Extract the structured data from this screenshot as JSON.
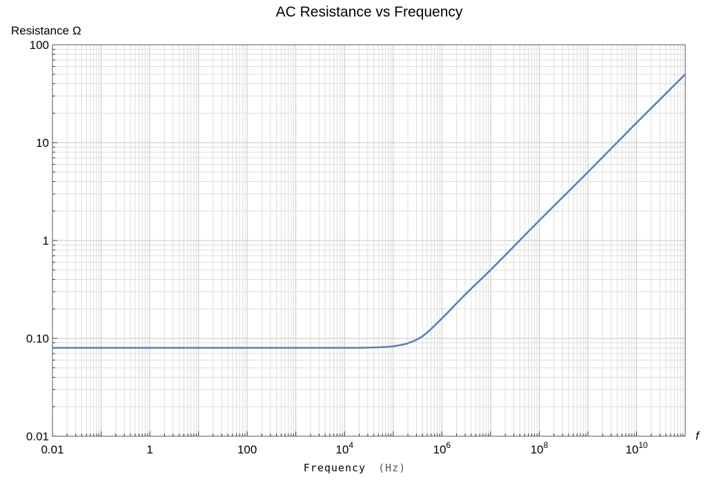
{
  "chart_data": {
    "type": "line",
    "title": "AC Resistance vs Frequency",
    "ylabel": "Resistance Ω",
    "xlabel_text": "Frequency",
    "xlabel_unit": "(Hz)",
    "x_axis_end_label": "f",
    "x_scale": "log",
    "y_scale": "log",
    "xlim": [
      0.01,
      100000000000
    ],
    "ylim": [
      0.01,
      100
    ],
    "grid": true,
    "x_ticks": [
      {
        "value": 0.01,
        "label": "0.01"
      },
      {
        "value": 1,
        "label": "1"
      },
      {
        "value": 100,
        "label": "100"
      },
      {
        "value": 10000,
        "base": "10",
        "exp": "4"
      },
      {
        "value": 1000000,
        "base": "10",
        "exp": "6"
      },
      {
        "value": 100000000,
        "base": "10",
        "exp": "8"
      },
      {
        "value": 10000000000,
        "base": "10",
        "exp": "10"
      }
    ],
    "y_ticks": [
      {
        "value": 0.01,
        "label": "0.01"
      },
      {
        "value": 0.1,
        "label": "0.10"
      },
      {
        "value": 1,
        "label": "1"
      },
      {
        "value": 10,
        "label": "10"
      },
      {
        "value": 100,
        "label": "100"
      }
    ],
    "series": [
      {
        "color": "#5b7db5",
        "points": [
          {
            "x": 0.01,
            "y": 0.08
          },
          {
            "x": 1,
            "y": 0.08
          },
          {
            "x": 100,
            "y": 0.08
          },
          {
            "x": 10000,
            "y": 0.08
          },
          {
            "x": 50000,
            "y": 0.081
          },
          {
            "x": 100000,
            "y": 0.083
          },
          {
            "x": 200000,
            "y": 0.089
          },
          {
            "x": 400000,
            "y": 0.105
          },
          {
            "x": 1000000,
            "y": 0.16
          },
          {
            "x": 3000000,
            "y": 0.28
          },
          {
            "x": 10000000,
            "y": 0.5
          },
          {
            "x": 100000000,
            "y": 1.6
          },
          {
            "x": 1000000000,
            "y": 5
          },
          {
            "x": 10000000000,
            "y": 16
          },
          {
            "x": 100000000000,
            "y": 50
          }
        ]
      }
    ]
  }
}
